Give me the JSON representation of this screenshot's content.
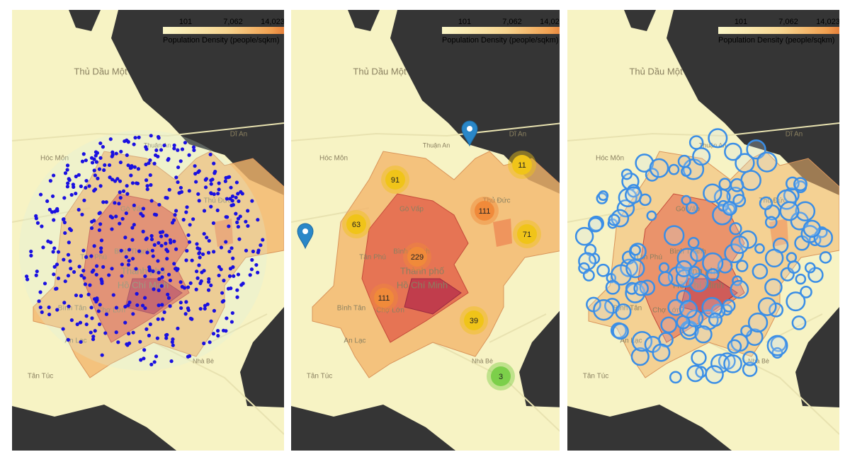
{
  "legend": {
    "ticks": [
      "101",
      "7,062",
      "14,023"
    ],
    "title": "Population Density (people/sqkm)"
  },
  "places": [
    "Thủ Dầu Một",
    "Thuận An",
    "Dĩ An",
    "Hóc Môn",
    "Gò Vấp",
    "Thủ Đức",
    "Tân Phú",
    "Bình Thạnh",
    "Thành phố",
    "Hồ Chí Minh",
    "Bình Tân",
    "Chợ Lớn",
    "An Lạc",
    "Nhà Bè",
    "Tân Túc"
  ],
  "clusters": [
    {
      "count": "91"
    },
    {
      "count": "63"
    },
    {
      "count": "229"
    },
    {
      "count": "111"
    },
    {
      "count": "111"
    },
    {
      "count": "11"
    },
    {
      "count": "71"
    },
    {
      "count": "39"
    },
    {
      "count": "3"
    }
  ]
}
